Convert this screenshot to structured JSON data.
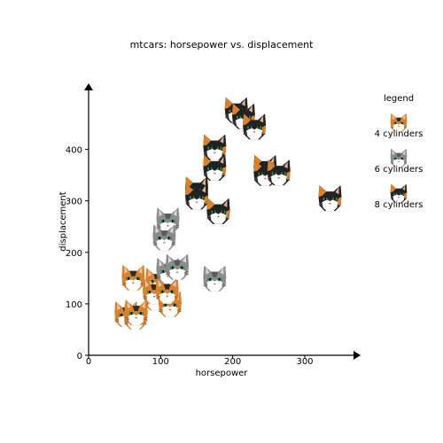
{
  "chart_data": {
    "type": "scatter",
    "title": "mtcars: horsepower vs. displacement",
    "xlabel": "horsepower",
    "ylabel": "displacement",
    "xlim": [
      0,
      375
    ],
    "ylim": [
      0,
      525
    ],
    "xticks": [
      0,
      100,
      200,
      300
    ],
    "yticks": [
      0,
      100,
      200,
      300,
      400
    ],
    "legend": {
      "title": "legend",
      "placement": "right",
      "entries": [
        {
          "label": "4 cylinders",
          "icon": "cat-face-orange-icon"
        },
        {
          "label": "6 cylinders",
          "icon": "cat-face-gray-icon"
        },
        {
          "label": "8 cylinders",
          "icon": "cat-face-black-icon"
        }
      ]
    },
    "series": [
      {
        "name": "4 cylinders",
        "marker": "cat-face-orange-icon",
        "colors": {
          "fur": "#d9822b",
          "patch": "#2a2a2a",
          "face": "#ffffff"
        },
        "points": [
          {
            "x": 93,
            "y": 108
          },
          {
            "x": 62,
            "y": 146.7
          },
          {
            "x": 95,
            "y": 140.8
          },
          {
            "x": 66,
            "y": 78.7
          },
          {
            "x": 52,
            "y": 75.7
          },
          {
            "x": 65,
            "y": 71.1
          },
          {
            "x": 97,
            "y": 120.1
          },
          {
            "x": 66,
            "y": 79
          },
          {
            "x": 91,
            "y": 120.3
          },
          {
            "x": 113,
            "y": 95.1
          },
          {
            "x": 109,
            "y": 121
          }
        ]
      },
      {
        "name": "6 cylinders",
        "marker": "cat-face-gray-icon",
        "colors": {
          "fur": "#8c8c8c",
          "patch": "#5a5a5a",
          "face": "#ffffff"
        },
        "points": [
          {
            "x": 110,
            "y": 160
          },
          {
            "x": 110,
            "y": 160
          },
          {
            "x": 110,
            "y": 258
          },
          {
            "x": 105,
            "y": 225
          },
          {
            "x": 123,
            "y": 167.6
          },
          {
            "x": 123,
            "y": 167.6
          },
          {
            "x": 175,
            "y": 145
          }
        ]
      },
      {
        "name": "8 cylinders",
        "marker": "cat-face-black-icon",
        "colors": {
          "fur": "#222222",
          "patch": "#d9822b",
          "face": "#ffffff"
        },
        "points": [
          {
            "x": 175,
            "y": 360
          },
          {
            "x": 245,
            "y": 360
          },
          {
            "x": 180,
            "y": 275.8
          },
          {
            "x": 180,
            "y": 275.8
          },
          {
            "x": 180,
            "y": 275.8
          },
          {
            "x": 205,
            "y": 472
          },
          {
            "x": 215,
            "y": 460
          },
          {
            "x": 230,
            "y": 440
          },
          {
            "x": 150,
            "y": 318
          },
          {
            "x": 150,
            "y": 304
          },
          {
            "x": 245,
            "y": 350
          },
          {
            "x": 175,
            "y": 400
          },
          {
            "x": 264,
            "y": 351
          },
          {
            "x": 335,
            "y": 301
          }
        ]
      }
    ]
  }
}
